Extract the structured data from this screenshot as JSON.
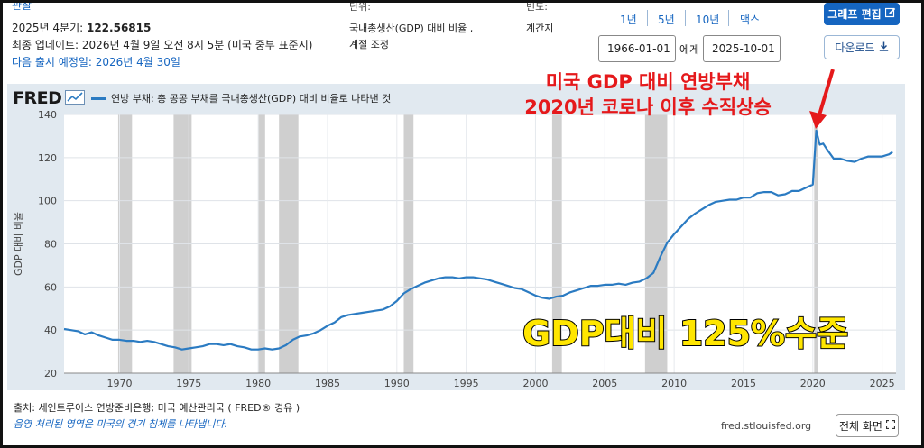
{
  "header": {
    "cut_top_label": "관찰",
    "latest_label": "2025년 4분기:",
    "latest_value": "122.56815",
    "updated": "최종 업데이트: 2026년 4월 9일 오전 8시 5분 (미국 중부 표준시)",
    "next_release": "다음 출시 예정일: 2026년 4월 30일",
    "units_label": "단위:",
    "units_value_line1": "국내총생산(GDP) 대비 비율 ,",
    "units_value_line2": "계절 조정",
    "freq_label": "빈도:",
    "freq_value": "계간지",
    "range_buttons": [
      "1년",
      "5년",
      "10년",
      "맥스"
    ],
    "date_from": "1966-01-01",
    "date_to_label": "에게",
    "date_to": "2025-10-01",
    "edit_graph": "그래프 편집",
    "download": "다운로드"
  },
  "chart": {
    "logo": "FRED",
    "legend": "연방 부채: 총 공공 부채를 국내총생산(GDP) 대비 비율로 나타낸 것",
    "ylabel": "GDP 대비 비율",
    "source": "출처: 세인트루이스 연방준비은행; 미국 예산관리국 ( FRED® 경유 )",
    "recession_note": "음영 처리된 영역은 미국의 경기 침체를 나타냅니다.",
    "site": "fred.stlouisfed.org",
    "fullscreen": "전체 화면"
  },
  "annotations": {
    "red_line1": "미국 GDP 대비 연방부채",
    "red_line2": "2020년 코로나 이후 수직상승",
    "yellow": "GDP대비 125%수준"
  },
  "colors": {
    "series": "#2b7bc2",
    "plot_bg": "#ffffff",
    "area_bg": "#e1e9f0",
    "recession": "#cfcfcf",
    "annotation_red": "#e5191b",
    "annotation_yellow": "#ffe600",
    "accent": "#1565c0"
  },
  "icons": {
    "edit": "pencil-icon",
    "download": "download-icon",
    "fullscreen": "fullscreen-icon",
    "legend_chart": "chart-line-icon"
  },
  "chart_data": {
    "type": "line",
    "title": "연방 부채: 총 공공 부채를 국내총생산(GDP) 대비 비율로 나타낸 것",
    "xlabel": "",
    "ylabel": "GDP 대비 비율",
    "xlim": [
      1966,
      2026
    ],
    "ylim": [
      20,
      140
    ],
    "xticks": [
      1970,
      1975,
      1980,
      1985,
      1990,
      1995,
      2000,
      2005,
      2010,
      2015,
      2020,
      2025
    ],
    "yticks": [
      20,
      40,
      60,
      80,
      100,
      120,
      140
    ],
    "grid": true,
    "legend_position": "top-left",
    "recessions": [
      [
        1969.9,
        1970.9
      ],
      [
        1973.9,
        1975.2
      ],
      [
        1980.0,
        1980.5
      ],
      [
        1981.5,
        1982.9
      ],
      [
        1990.5,
        1991.2
      ],
      [
        2001.2,
        2001.9
      ],
      [
        2007.9,
        2009.5
      ],
      [
        2020.1,
        2020.4
      ]
    ],
    "series": [
      {
        "name": "연방 부채: 총 공공 부채를 국내총생산(GDP) 대비 비율로 나타낸 것",
        "x": [
          1966.0,
          1966.5,
          1967.0,
          1967.5,
          1968.0,
          1968.5,
          1969.0,
          1969.5,
          1970.0,
          1970.5,
          1971.0,
          1971.5,
          1972.0,
          1972.5,
          1973.0,
          1973.5,
          1974.0,
          1974.5,
          1975.0,
          1975.5,
          1976.0,
          1976.5,
          1977.0,
          1977.5,
          1978.0,
          1978.5,
          1979.0,
          1979.5,
          1980.0,
          1980.5,
          1981.0,
          1981.5,
          1982.0,
          1982.5,
          1983.0,
          1983.5,
          1984.0,
          1984.5,
          1985.0,
          1985.5,
          1986.0,
          1986.5,
          1987.0,
          1987.5,
          1988.0,
          1988.5,
          1989.0,
          1989.5,
          1990.0,
          1990.5,
          1991.0,
          1991.5,
          1992.0,
          1992.5,
          1993.0,
          1993.5,
          1994.0,
          1994.5,
          1995.0,
          1995.5,
          1996.0,
          1996.5,
          1997.0,
          1997.5,
          1998.0,
          1998.5,
          1999.0,
          1999.5,
          2000.0,
          2000.5,
          2001.0,
          2001.5,
          2002.0,
          2002.5,
          2003.0,
          2003.5,
          2004.0,
          2004.5,
          2005.0,
          2005.5,
          2006.0,
          2006.5,
          2007.0,
          2007.5,
          2008.0,
          2008.5,
          2009.0,
          2009.5,
          2010.0,
          2010.5,
          2011.0,
          2011.5,
          2012.0,
          2012.5,
          2013.0,
          2013.5,
          2014.0,
          2014.5,
          2015.0,
          2015.5,
          2016.0,
          2016.5,
          2017.0,
          2017.5,
          2018.0,
          2018.5,
          2019.0,
          2019.5,
          2020.0,
          2020.25,
          2020.5,
          2020.75,
          2021.0,
          2021.5,
          2022.0,
          2022.5,
          2023.0,
          2023.5,
          2024.0,
          2024.5,
          2025.0,
          2025.5,
          2025.75
        ],
        "y": [
          40.5,
          40.0,
          39.5,
          38.0,
          39.0,
          37.5,
          36.5,
          35.5,
          35.5,
          35.0,
          35.0,
          34.5,
          35.0,
          34.5,
          33.5,
          32.5,
          32.0,
          31.0,
          31.5,
          32.0,
          32.5,
          33.5,
          33.5,
          33.0,
          33.5,
          32.5,
          32.0,
          31.0,
          31.0,
          31.5,
          31.0,
          31.5,
          33.0,
          35.5,
          37.0,
          37.5,
          38.5,
          40.0,
          42.0,
          43.5,
          46.0,
          47.0,
          47.5,
          48.0,
          48.5,
          49.0,
          49.5,
          51.0,
          53.5,
          57.0,
          59.0,
          60.5,
          62.0,
          63.0,
          64.0,
          64.5,
          64.5,
          64.0,
          64.5,
          64.5,
          64.0,
          63.5,
          62.5,
          61.5,
          60.5,
          59.5,
          59.0,
          57.5,
          56.0,
          55.0,
          54.5,
          55.5,
          56.0,
          57.5,
          58.5,
          59.5,
          60.5,
          60.5,
          61.0,
          61.0,
          61.5,
          61.0,
          62.0,
          62.5,
          64.0,
          66.5,
          74.0,
          80.5,
          84.5,
          88.0,
          91.5,
          94.0,
          96.0,
          98.0,
          99.5,
          100.0,
          100.5,
          100.5,
          101.5,
          101.5,
          103.5,
          104.0,
          104.0,
          102.5,
          103.0,
          104.5,
          104.5,
          106.0,
          107.5,
          132.5,
          126.0,
          126.5,
          124.0,
          119.5,
          119.5,
          118.5,
          118.0,
          119.5,
          120.5,
          120.5,
          120.5,
          121.5,
          122.6
        ]
      }
    ]
  }
}
